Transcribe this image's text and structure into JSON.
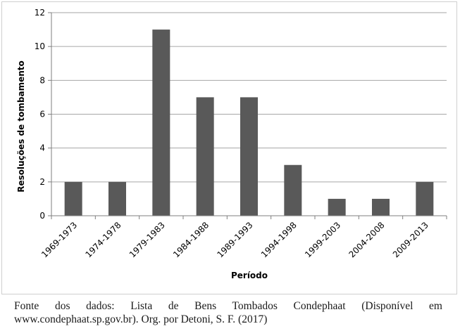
{
  "chart_data": {
    "type": "bar",
    "categories": [
      "1969-1973",
      "1974-1978",
      "1979-1983",
      "1984-1988",
      "1989-1993",
      "1994-1998",
      "1999-2003",
      "2004-2008",
      "2009-2013"
    ],
    "values": [
      2,
      2,
      11,
      7,
      7,
      3,
      1,
      1,
      2
    ],
    "title": "",
    "xlabel": "Período",
    "ylabel": "Resoluções de tombamento",
    "ylim": [
      0,
      12
    ],
    "yticks": [
      0,
      2,
      4,
      6,
      8,
      10,
      12
    ],
    "grid": true,
    "legend": "none",
    "bar_color": "#595959",
    "grid_color": "#a6a6a6"
  },
  "caption": "Fonte dos dados: Lista de Bens Tombados Condephaat (Disponível em www.condephaat.sp.gov.br). Org. por Detoni, S. F. (2017)"
}
